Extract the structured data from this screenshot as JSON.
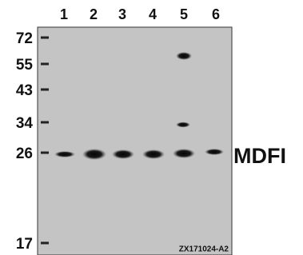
{
  "lanes": [
    "1",
    "2",
    "3",
    "4",
    "5",
    "6"
  ],
  "markers": [
    "72",
    "55",
    "43",
    "34",
    "26",
    "17"
  ],
  "protein_label": "MDFI",
  "blot_id": "ZX171024-A2"
}
